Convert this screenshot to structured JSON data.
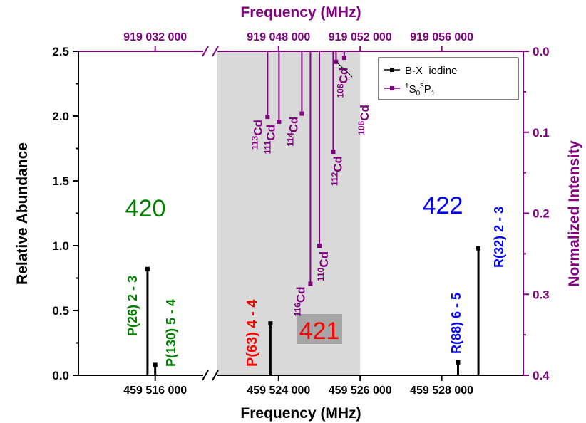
{
  "chart_data": {
    "type": "bar",
    "title": "",
    "xlabel": "Frequency (MHz)",
    "x2label": "Frequency (MHz)",
    "ylabel": "Relative Abundance",
    "y2label": "Normalized Intensity",
    "xlim": [
      459512000,
      459530000
    ],
    "x_break": [
      459518500,
      459522500
    ],
    "x_ticks": [
      459516000,
      459524000,
      459526000,
      459528000
    ],
    "x_tick_labels": [
      "459 516 000",
      "459 524 000",
      "459 526 000",
      "459 528 000"
    ],
    "x2_tick_labels": [
      "919 032 000",
      "919 048 000",
      "919 052 000",
      "919 056 000"
    ],
    "ylim": [
      0,
      2.5
    ],
    "y_ticks": [
      0.0,
      0.5,
      1.0,
      1.5,
      2.0,
      2.5
    ],
    "y_tick_labels": [
      "0.0",
      "0.5",
      "1.0",
      "1.5",
      "2.0",
      "2.5"
    ],
    "y2lim": [
      0.0,
      0.4
    ],
    "y2_ticks": [
      0.0,
      0.1,
      0.2,
      0.3,
      0.4
    ],
    "y2_tick_labels": [
      "0.0",
      "0.1",
      "0.2",
      "0.3",
      "0.4"
    ],
    "shaded_region": [
      459522500,
      459526000
    ],
    "legend": {
      "placement": "top-right",
      "entries": [
        {
          "text": "B-X  iodine",
          "color": "#000000"
        },
        {
          "text": "cadmium",
          "color": "#800080",
          "transition": {
            "l1": "1",
            "s1": "0",
            "l2": "3",
            "s2": "1",
            "sep": "S",
            "end": "P"
          }
        }
      ]
    },
    "series": [
      {
        "name": "B-X  iodine",
        "color": "#000000",
        "points": [
          {
            "x": 459515600,
            "y": 0.82
          },
          {
            "x": 459516000,
            "y": 0.08
          },
          {
            "x": 459523800,
            "y": 0.4
          },
          {
            "x": 459528400,
            "y": 0.1
          },
          {
            "x": 459528900,
            "y": 0.98
          }
        ]
      },
      {
        "name": "cadmium",
        "color": "#800080",
        "points": [
          {
            "x": 459523730,
            "y": 0.081,
            "mass": "113",
            "element": "Cd"
          },
          {
            "x": 459524010,
            "y": 0.087,
            "mass": "111",
            "element": "Cd"
          },
          {
            "x": 459524570,
            "y": 0.077,
            "mass": "114",
            "element": "Cd"
          },
          {
            "x": 459524780,
            "y": 0.287,
            "mass": "116",
            "element": "Cd"
          },
          {
            "x": 459525000,
            "y": 0.24,
            "mass": "110",
            "element": "Cd"
          },
          {
            "x": 459525340,
            "y": 0.124,
            "mass": "112",
            "element": "Cd"
          },
          {
            "x": 459525410,
            "y": 0.013,
            "mass": "108",
            "element": "Cd"
          },
          {
            "x": 459525610,
            "y": 0.008,
            "mass": "106",
            "element": "Cd"
          }
        ]
      }
    ],
    "line_labels": [
      {
        "text": "P(26) 2 - 3",
        "color": "#008000"
      },
      {
        "text": "P(130) 5 - 4",
        "color": "#008000"
      },
      {
        "text": "P(63) 4 - 4",
        "color": "#ff0000"
      },
      {
        "text": "R(88) 6 - 5",
        "color": "#0000ff"
      },
      {
        "text": "R(32) 2 - 3",
        "color": "#0000ff"
      }
    ],
    "group_labels": [
      {
        "text": "420",
        "color": "#008000"
      },
      {
        "text": "421",
        "color": "#ff0000"
      },
      {
        "text": "422",
        "color": "#0000ff"
      }
    ]
  }
}
